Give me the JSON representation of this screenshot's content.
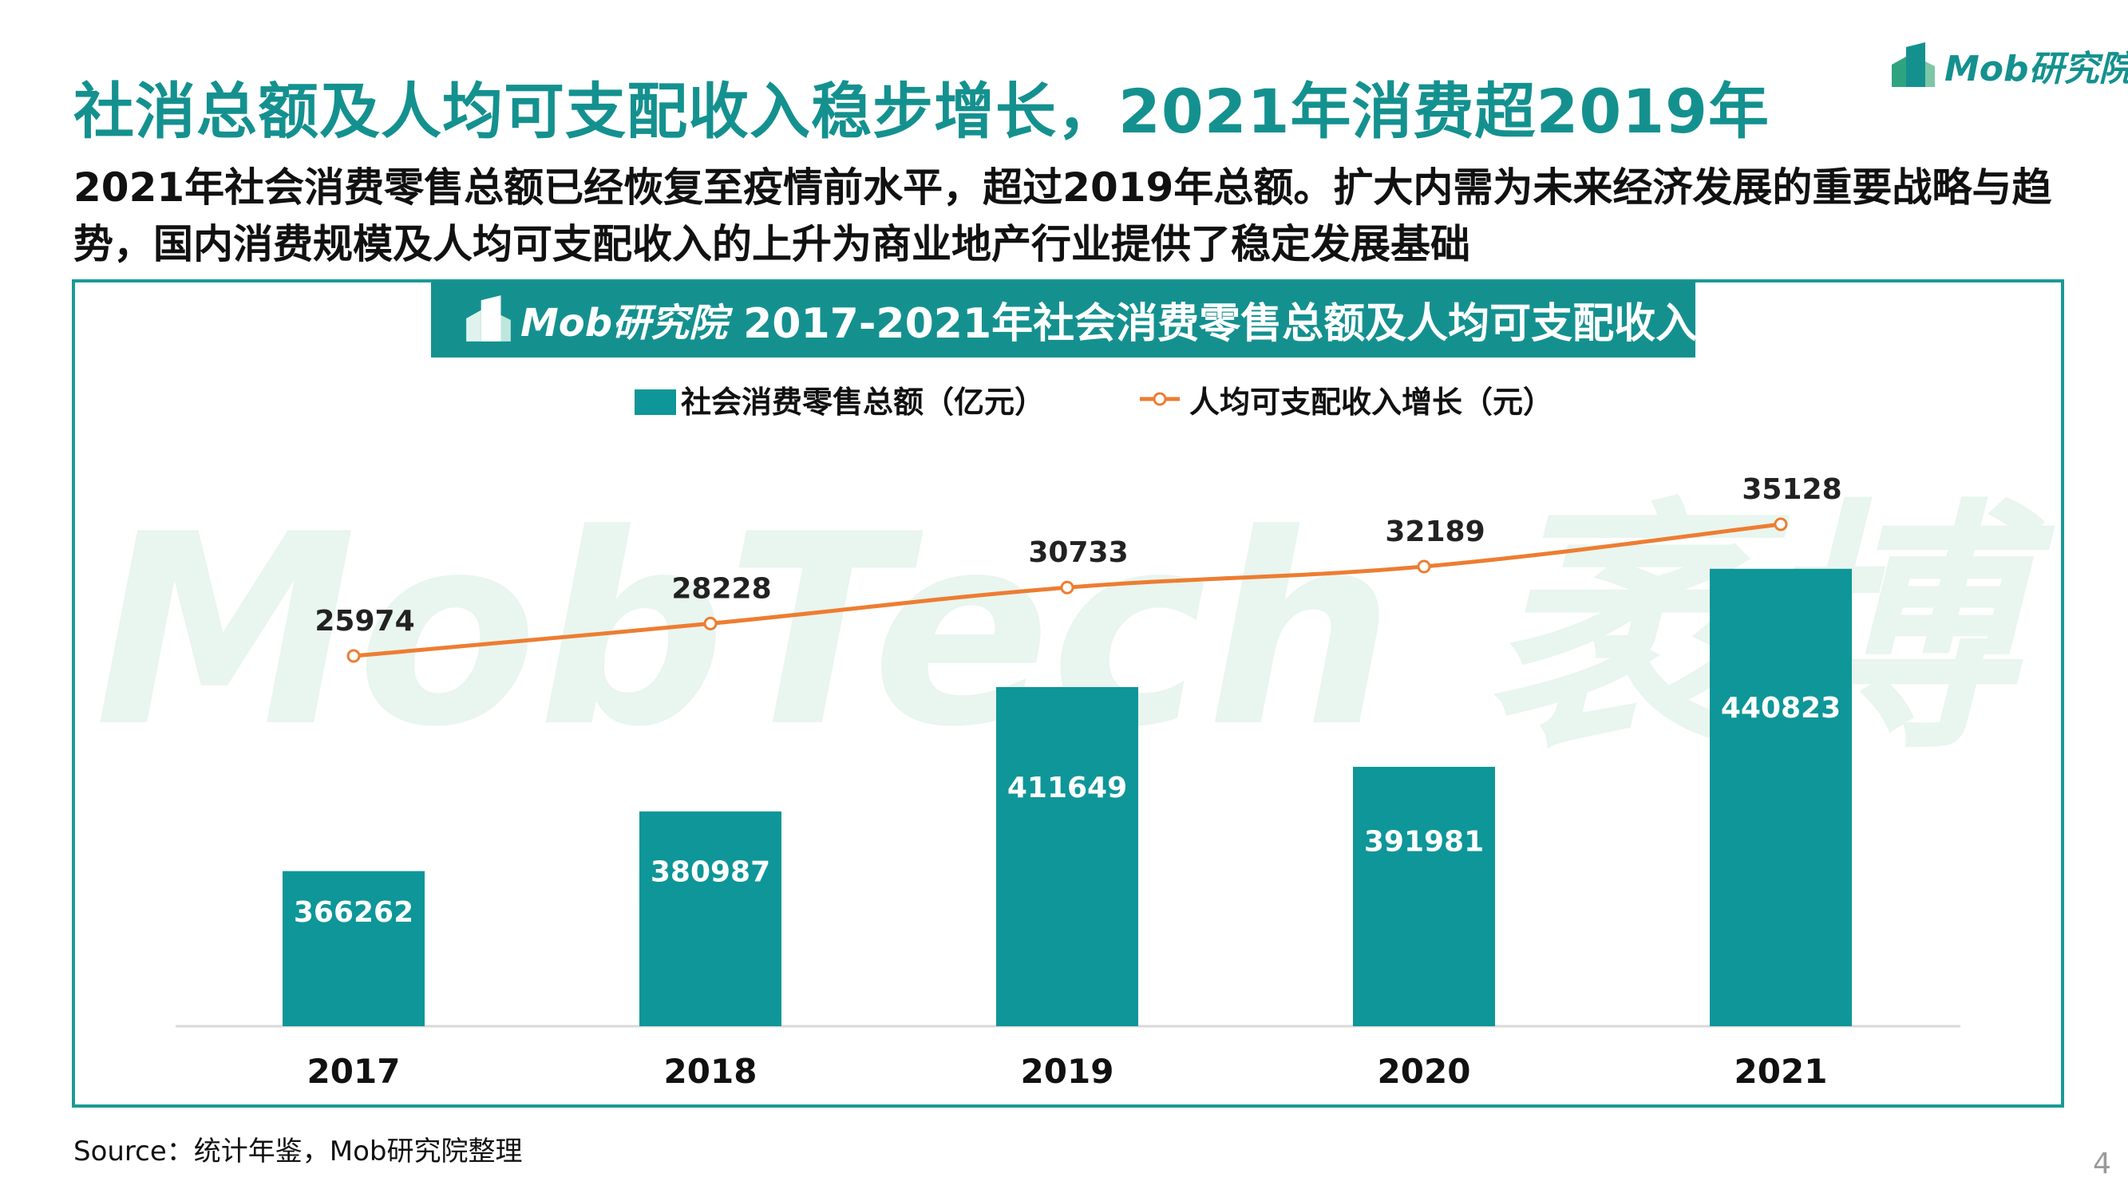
{
  "page": {
    "title": "社消总额及人均可支配收入稳步增长，2021年消费超2019年",
    "subtitle": "2021年社会消费零售总额已经恢复至疫情前水平，超过2019年总额。扩大内需为未来经济发展的重要战略与趋势，国内消费规模及人均可支配收入的上升为商业地产行业提供了稳定发展基础",
    "brand": "Mob研究院",
    "source": "Source：统计年鉴，Mob研究院整理",
    "page_number": "4"
  },
  "chart_banner": {
    "logo": "Mob研究院",
    "title": "2017-2021年社会消费零售总额及人均可支配收入"
  },
  "watermark": "MobTech 袤博",
  "colors": {
    "teal": "#14918f",
    "bar": "#0f9698",
    "line": "#ed7d31",
    "watermark": "#e9f5ef"
  },
  "chart_data": {
    "type": "bar",
    "categories": [
      "2017",
      "2018",
      "2019",
      "2020",
      "2021"
    ],
    "series": [
      {
        "name": "社会消费零售总额（亿元）",
        "type": "bar",
        "axis": "left",
        "values": [
          366262,
          380987,
          411649,
          391981,
          440823
        ]
      },
      {
        "name": "人均可支配收入增长（元）",
        "type": "line",
        "axis": "right",
        "values": [
          25974,
          28228,
          30733,
          32189,
          35128
        ]
      }
    ],
    "legend_position": "top-center",
    "grid": false
  }
}
